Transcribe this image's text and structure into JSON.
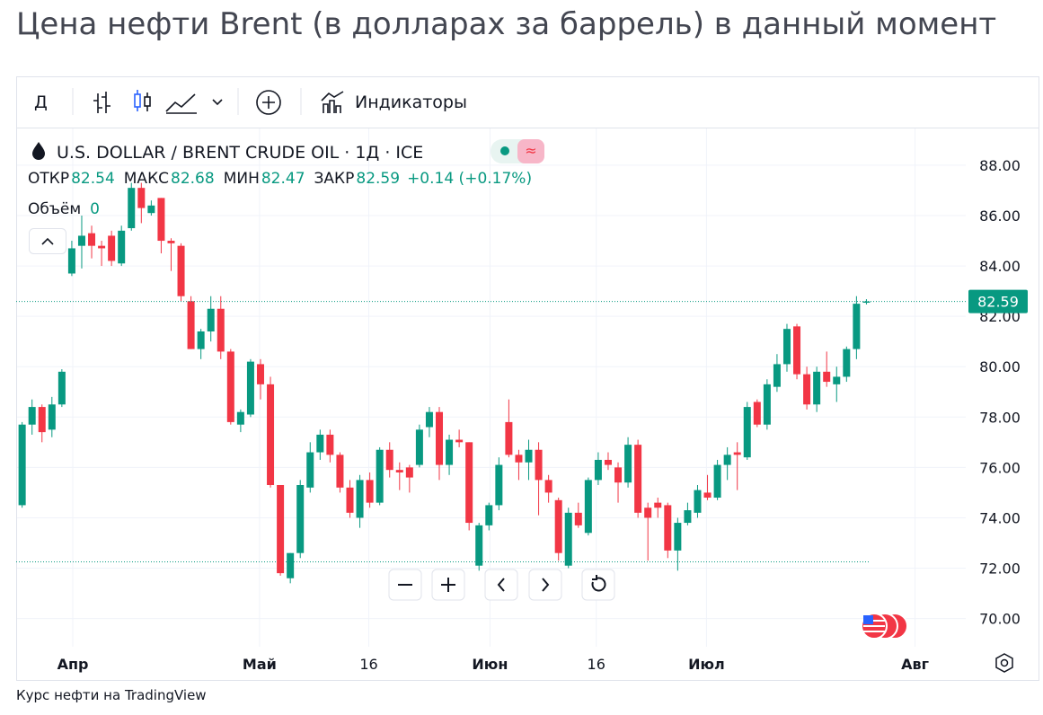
{
  "header": {
    "title": "Цена нефти Brent (в долларах за баррель) в данный момент"
  },
  "toolbar": {
    "interval": "Д",
    "indicators": "Индикаторы"
  },
  "legend": {
    "symbol": "U.S. DOLLAR / BRENT CRUDE OIL · 1Д · ICE",
    "open_label": "ОТКР",
    "open": "82.54",
    "high_label": "МАКС",
    "high": "82.68",
    "low_label": "МИН",
    "low": "82.47",
    "close_label": "ЗАКР",
    "close": "82.59",
    "change": "+0.14 (+0.17%)",
    "volume_label": "Объём",
    "volume": "0"
  },
  "footer": "Курс нефти на TradingView",
  "chart_data": {
    "type": "candlestick",
    "up_color": "#089981",
    "down_color": "#f23645",
    "open": [
      74.5,
      77.7,
      78.4,
      77.5,
      78.5,
      83.7,
      84.8,
      85.3,
      84.8,
      85.2,
      84.1,
      85.5,
      87.1,
      86.1,
      86.7,
      85.0,
      84.8,
      82.6,
      80.7,
      81.4,
      82.3,
      80.6,
      77.7,
      78.1,
      80.1,
      79.3,
      75.3,
      71.6,
      72.6,
      75.2,
      76.6,
      77.3,
      76.5,
      75.2,
      74.0,
      75.5,
      74.6,
      76.7,
      75.9,
      76.0,
      76.1,
      77.6,
      78.2,
      76.1,
      77.1,
      77.0,
      72.1,
      73.7,
      74.5,
      77.8,
      76.5,
      76.2,
      76.7,
      75.5,
      74.7,
      72.1,
      74.2,
      73.4,
      75.5,
      76.3,
      76.0,
      75.4,
      76.9,
      74.4,
      74.6,
      74.5,
      72.7,
      73.8,
      74.2,
      75.0,
      74.8,
      76.1,
      76.6,
      76.4,
      78.6,
      77.7,
      79.2,
      80.1,
      81.6,
      79.7,
      78.5,
      79.8,
      79.3,
      79.6,
      80.7,
      82.54
    ],
    "high": [
      77.8,
      78.7,
      78.5,
      78.8,
      79.9,
      85.0,
      86.0,
      85.6,
      85.0,
      85.4,
      85.6,
      87.3,
      87.3,
      86.6,
      86.7,
      85.1,
      84.9,
      82.8,
      81.5,
      82.8,
      82.8,
      80.7,
      78.3,
      80.3,
      80.3,
      79.6,
      75.3,
      72.6,
      75.5,
      77.0,
      77.5,
      77.5,
      76.6,
      75.5,
      75.7,
      75.8,
      76.8,
      77.0,
      76.2,
      76.1,
      77.7,
      78.4,
      78.4,
      77.3,
      77.5,
      77.0,
      73.8,
      74.6,
      76.4,
      78.7,
      76.7,
      77.1,
      77.0,
      75.7,
      74.8,
      74.4,
      74.6,
      75.6,
      76.6,
      76.6,
      76.2,
      77.2,
      77.1,
      74.6,
      74.8,
      74.6,
      74.0,
      74.6,
      75.3,
      75.7,
      76.3,
      76.8,
      77.0,
      78.6,
      78.7,
      79.5,
      80.5,
      81.7,
      81.7,
      80.0,
      80.0,
      80.6,
      80.0,
      80.8,
      82.8,
      82.68
    ],
    "low": [
      74.4,
      77.3,
      77.0,
      77.2,
      78.4,
      83.6,
      83.9,
      84.3,
      84.0,
      84.0,
      84.0,
      85.4,
      85.7,
      86.0,
      84.5,
      83.8,
      82.6,
      80.7,
      80.3,
      81.0,
      80.3,
      77.7,
      77.4,
      78.0,
      78.7,
      75.2,
      71.7,
      71.4,
      72.4,
      75.0,
      76.3,
      76.2,
      75.0,
      74.0,
      73.6,
      74.4,
      74.5,
      75.6,
      75.1,
      75.0,
      76.0,
      77.2,
      75.5,
      75.7,
      76.8,
      73.5,
      71.9,
      73.5,
      74.3,
      76.4,
      75.5,
      75.5,
      74.1,
      74.6,
      72.3,
      72.0,
      73.6,
      73.3,
      75.3,
      75.9,
      74.6,
      75.2,
      74.0,
      72.3,
      74.0,
      72.4,
      71.9,
      73.7,
      74.0,
      74.7,
      74.7,
      75.5,
      75.1,
      76.3,
      77.6,
      77.5,
      79.0,
      79.8,
      79.5,
      78.3,
      78.2,
      79.2,
      78.6,
      79.4,
      80.3,
      82.47
    ],
    "close": [
      77.7,
      78.4,
      77.4,
      78.5,
      79.8,
      84.7,
      85.2,
      84.8,
      84.7,
      84.2,
      85.4,
      87.1,
      86.3,
      86.4,
      85.0,
      84.9,
      82.8,
      80.7,
      81.4,
      82.3,
      80.6,
      77.8,
      78.2,
      80.2,
      79.3,
      75.3,
      71.8,
      72.6,
      75.3,
      76.6,
      77.3,
      76.5,
      75.2,
      74.2,
      75.5,
      74.6,
      76.7,
      75.9,
      75.8,
      75.6,
      77.5,
      78.2,
      76.1,
      77.1,
      77.0,
      73.8,
      73.7,
      74.5,
      76.1,
      76.5,
      76.2,
      76.7,
      75.5,
      75.0,
      72.6,
      74.2,
      73.7,
      75.5,
      76.3,
      76.1,
      75.4,
      76.9,
      74.2,
      74.0,
      74.4,
      72.7,
      73.8,
      74.3,
      75.1,
      74.8,
      76.1,
      76.5,
      76.5,
      78.4,
      77.7,
      79.3,
      80.1,
      81.5,
      79.7,
      78.5,
      79.8,
      79.4,
      79.6,
      80.7,
      82.5,
      82.59
    ],
    "reference_line": 72.25,
    "ylim": [
      67.56,
      89.46
    ],
    "yticks": [
      {
        "value": 70,
        "label": "70.00"
      },
      {
        "value": 72,
        "label": "72.00"
      },
      {
        "value": 74,
        "label": "74.00"
      },
      {
        "value": 76,
        "label": "76.00"
      },
      {
        "value": 78,
        "label": "78.00"
      },
      {
        "value": 80,
        "label": "80.00"
      },
      {
        "value": 82,
        "label": "82.00"
      },
      {
        "value": 84,
        "label": "84.00"
      },
      {
        "value": 86,
        "label": "86.00"
      },
      {
        "value": 88,
        "label": "88.00"
      }
    ],
    "xlim": [
      -0.6,
      95
    ],
    "xticks": [
      {
        "value": 5.1,
        "label": "Апр"
      },
      {
        "value": 23.9,
        "label": "Май"
      },
      {
        "value": 34.9,
        "label": "16"
      },
      {
        "value": 47.1,
        "label": "Июн"
      },
      {
        "value": 57.8,
        "label": "16"
      },
      {
        "value": 68.9,
        "label": "Июл"
      },
      {
        "value": 89.9,
        "label": "Авг"
      }
    ],
    "grid": true
  }
}
